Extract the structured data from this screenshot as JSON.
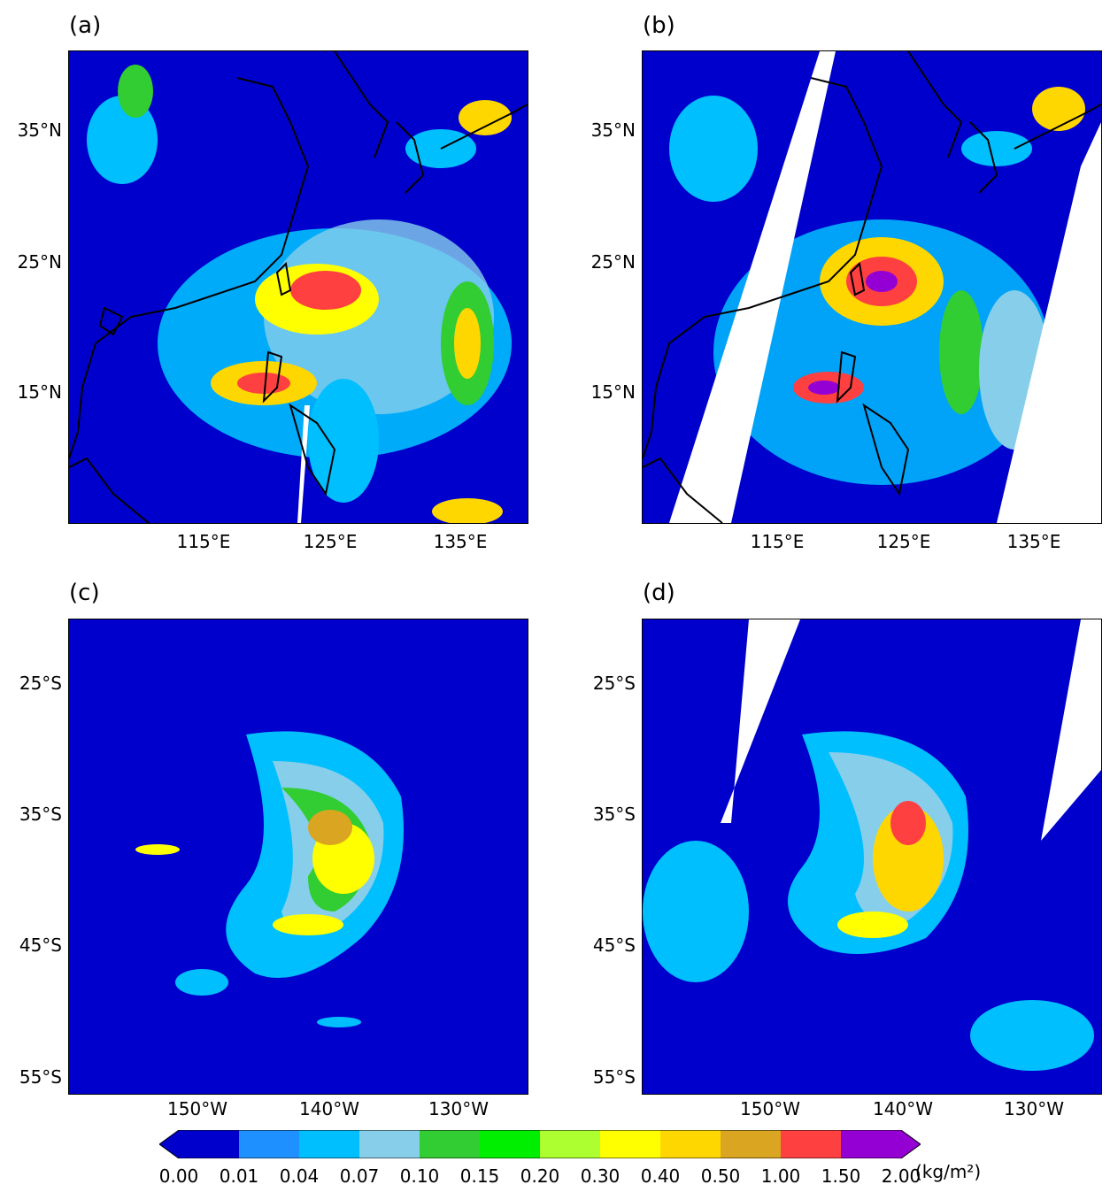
{
  "panels": [
    {
      "label": "(a)",
      "lat_ticks": [
        "35°N",
        "25°N",
        "15°N"
      ],
      "lon_ticks": [
        "115°E",
        "125°E",
        "135°E"
      ]
    },
    {
      "label": "(b)",
      "lat_ticks": [
        "35°N",
        "25°N",
        "15°N"
      ],
      "lon_ticks": [
        "115°E",
        "125°E",
        "135°E"
      ]
    },
    {
      "label": "(c)",
      "lat_ticks": [
        "25°S",
        "35°S",
        "45°S",
        "55°S"
      ],
      "lon_ticks": [
        "150°W",
        "140°W",
        "130°W"
      ]
    },
    {
      "label": "(d)",
      "lat_ticks": [
        "25°S",
        "35°S",
        "45°S",
        "55°S"
      ],
      "lon_ticks": [
        "150°W",
        "140°W",
        "130°W"
      ]
    }
  ],
  "colorbar": {
    "levels": [
      "0.00",
      "0.01",
      "0.04",
      "0.07",
      "0.10",
      "0.15",
      "0.20",
      "0.30",
      "0.40",
      "0.50",
      "1.00",
      "1.50",
      "2.00"
    ],
    "colors": [
      "#0000cd",
      "#1e90ff",
      "#00bfff",
      "#87ceeb",
      "#32cd32",
      "#00ee00",
      "#adff2f",
      "#ffff00",
      "#ffd700",
      "#daa520",
      "#ff4040",
      "#9400d3"
    ],
    "unit": "(kg/m²)"
  },
  "colors": {
    "background": "#0000cd",
    "swath_gap": "#ffffff",
    "coastline": "#000000"
  }
}
